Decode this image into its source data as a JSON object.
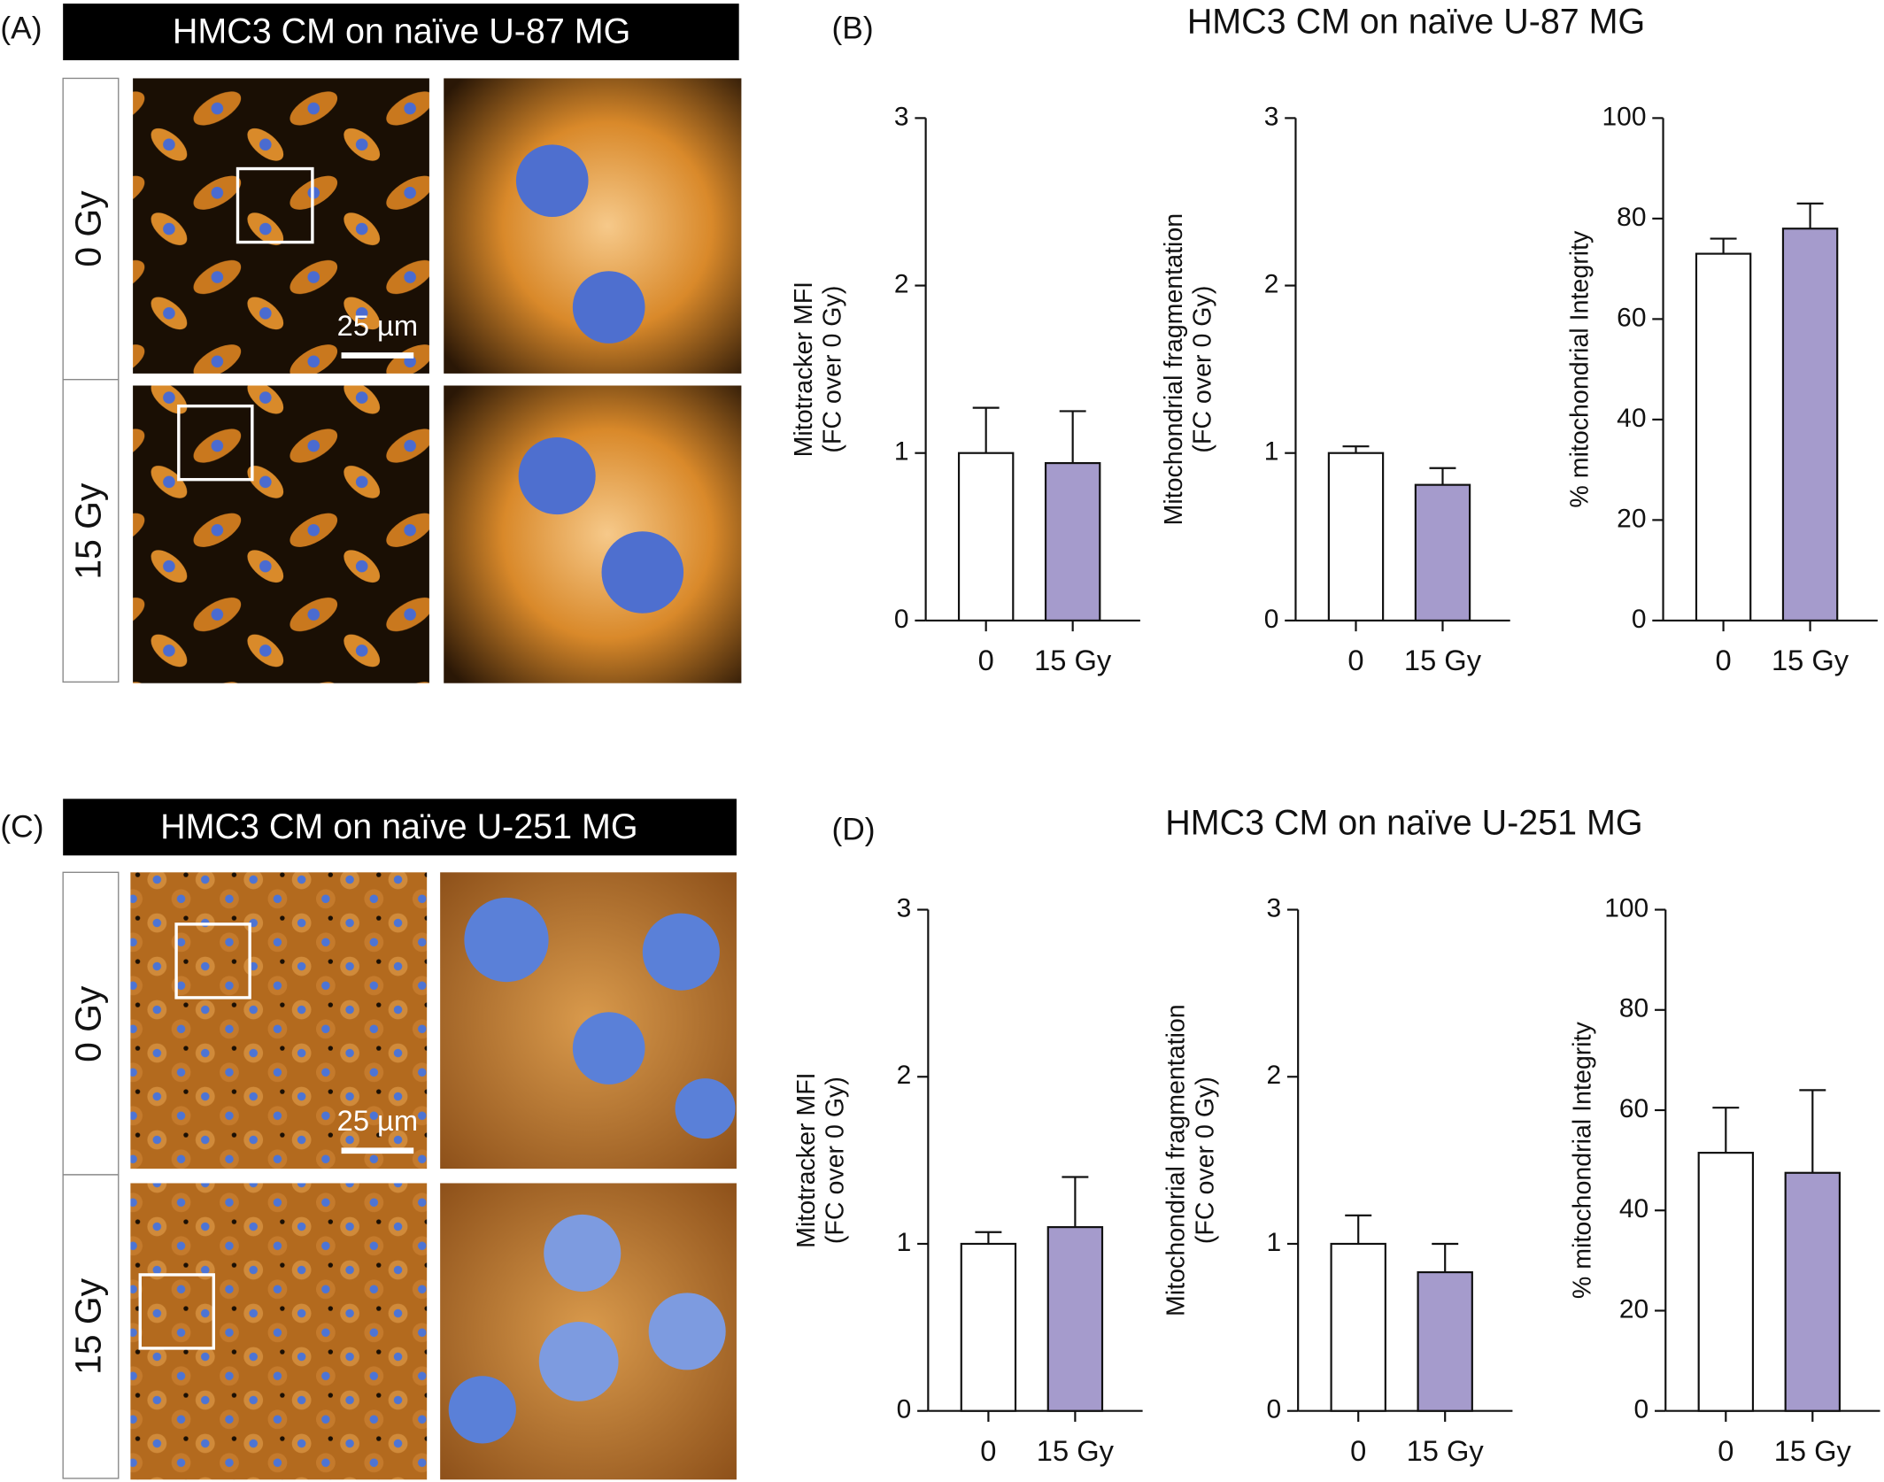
{
  "image_panels": [
    {
      "label": "(A)",
      "title": "HMC3 CM on naïve U-87 MG",
      "rows": [
        "0 Gy",
        "15 Gy"
      ],
      "scale_bar": "25 µm"
    },
    {
      "label": "(C)",
      "title": "HMC3 CM on naïve U-251 MG",
      "rows": [
        "0 Gy",
        "15 Gy"
      ],
      "scale_bar": "25 µm"
    }
  ],
  "chart_panels": [
    {
      "label": "(B)",
      "title": "HMC3 CM on naïve U-87 MG"
    },
    {
      "label": "(D)",
      "title": "HMC3 CM on naïve U-251 MG"
    }
  ],
  "chart_data": [
    {
      "type": "bar",
      "ylabel": [
        "Mitotracker MFI",
        "(FC over 0 Gy)"
      ],
      "categories": [
        "0",
        "15 Gy"
      ],
      "values": [
        1.0,
        0.94
      ],
      "errors": [
        0.27,
        0.31
      ],
      "colors": [
        "#ffffff",
        "#a59bcc"
      ],
      "ylim": [
        0,
        3
      ],
      "yticks": [
        0,
        1,
        2,
        3
      ]
    },
    {
      "type": "bar",
      "ylabel": [
        "Mitochondrial fragmentation",
        "(FC over 0 Gy)"
      ],
      "categories": [
        "0",
        "15 Gy"
      ],
      "values": [
        1.0,
        0.81
      ],
      "errors": [
        0.04,
        0.1
      ],
      "colors": [
        "#ffffff",
        "#a59bcc"
      ],
      "ylim": [
        0,
        3
      ],
      "yticks": [
        0,
        1,
        2,
        3
      ]
    },
    {
      "type": "bar",
      "ylabel": [
        "% mitochondrial Integrity"
      ],
      "categories": [
        "0",
        "15 Gy"
      ],
      "values": [
        73,
        78
      ],
      "errors": [
        3,
        5
      ],
      "colors": [
        "#ffffff",
        "#a59bcc"
      ],
      "ylim": [
        0,
        100
      ],
      "yticks": [
        0,
        20,
        40,
        60,
        80,
        100
      ]
    },
    {
      "type": "bar",
      "ylabel": [
        "Mitotracker MFI",
        "(FC over 0 Gy)"
      ],
      "categories": [
        "0",
        "15 Gy"
      ],
      "values": [
        1.0,
        1.1
      ],
      "errors": [
        0.07,
        0.3
      ],
      "colors": [
        "#ffffff",
        "#a59bcc"
      ],
      "ylim": [
        0,
        3
      ],
      "yticks": [
        0,
        1,
        2,
        3
      ]
    },
    {
      "type": "bar",
      "ylabel": [
        "Mitochondrial fragmentation",
        "(FC over 0 Gy)"
      ],
      "categories": [
        "0",
        "15 Gy"
      ],
      "values": [
        1.0,
        0.83
      ],
      "errors": [
        0.17,
        0.17
      ],
      "colors": [
        "#ffffff",
        "#a59bcc"
      ],
      "ylim": [
        0,
        3
      ],
      "yticks": [
        0,
        1,
        2,
        3
      ]
    },
    {
      "type": "bar",
      "ylabel": [
        "% mitochondrial Integrity"
      ],
      "categories": [
        "0",
        "15 Gy"
      ],
      "values": [
        51.5,
        47.5
      ],
      "errors": [
        9,
        16.5
      ],
      "colors": [
        "#ffffff",
        "#a59bcc"
      ],
      "ylim": [
        0,
        100
      ],
      "yticks": [
        0,
        20,
        40,
        60,
        80,
        100
      ]
    }
  ]
}
